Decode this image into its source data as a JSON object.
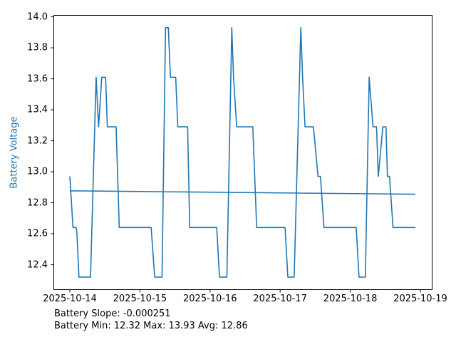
{
  "chart_data": {
    "type": "line",
    "title": "",
    "xlabel": "",
    "ylabel": "Battery Voltage",
    "grid": false,
    "legend": null,
    "line_color": "#1f77b4",
    "ylabel_color": "#1f77b4",
    "tick_color": "#000000",
    "frame_color": "#000000",
    "xlim_days": [
      -0.234,
      5.173
    ],
    "ylim": [
      12.237,
      14.012
    ],
    "x_ticks": [
      {
        "day": 0,
        "label": "2025-10-14"
      },
      {
        "day": 1,
        "label": "2025-10-15"
      },
      {
        "day": 2,
        "label": "2025-10-16"
      },
      {
        "day": 3,
        "label": "2025-10-17"
      },
      {
        "day": 4,
        "label": "2025-10-18"
      },
      {
        "day": 5,
        "label": "2025-10-19"
      }
    ],
    "y_ticks": [
      {
        "value": 12.4,
        "label": "12.4"
      },
      {
        "value": 12.6,
        "label": "12.6"
      },
      {
        "value": 12.8,
        "label": "12.8"
      },
      {
        "value": 13.0,
        "label": "13.0"
      },
      {
        "value": 13.2,
        "label": "13.2"
      },
      {
        "value": 13.4,
        "label": "13.4"
      },
      {
        "value": 13.6,
        "label": "13.6"
      },
      {
        "value": 13.8,
        "label": "13.8"
      },
      {
        "value": 14.0,
        "label": "14.0"
      }
    ],
    "series": [
      {
        "name": "battery_voltage",
        "points": [
          [
            0.0,
            12.97
          ],
          [
            0.045,
            12.64
          ],
          [
            0.09,
            12.64
          ],
          [
            0.1,
            12.61
          ],
          [
            0.13,
            12.32
          ],
          [
            0.295,
            12.32
          ],
          [
            0.375,
            13.61
          ],
          [
            0.41,
            13.29
          ],
          [
            0.455,
            13.61
          ],
          [
            0.51,
            13.61
          ],
          [
            0.535,
            13.29
          ],
          [
            0.66,
            13.29
          ],
          [
            0.705,
            12.64
          ],
          [
            1.16,
            12.64
          ],
          [
            1.21,
            12.32
          ],
          [
            1.315,
            12.32
          ],
          [
            1.365,
            13.93
          ],
          [
            1.405,
            13.93
          ],
          [
            1.435,
            13.61
          ],
          [
            1.51,
            13.61
          ],
          [
            1.54,
            13.29
          ],
          [
            1.68,
            13.29
          ],
          [
            1.71,
            12.64
          ],
          [
            2.095,
            12.64
          ],
          [
            2.135,
            12.32
          ],
          [
            2.24,
            12.32
          ],
          [
            2.31,
            13.93
          ],
          [
            2.335,
            13.61
          ],
          [
            2.38,
            13.29
          ],
          [
            2.61,
            13.29
          ],
          [
            2.665,
            12.64
          ],
          [
            3.07,
            12.64
          ],
          [
            3.11,
            12.32
          ],
          [
            3.2,
            12.32
          ],
          [
            3.295,
            13.93
          ],
          [
            3.32,
            13.61
          ],
          [
            3.355,
            13.29
          ],
          [
            3.475,
            13.29
          ],
          [
            3.54,
            12.97
          ],
          [
            3.575,
            12.97
          ],
          [
            3.625,
            12.64
          ],
          [
            4.085,
            12.64
          ],
          [
            4.125,
            12.32
          ],
          [
            4.215,
            12.32
          ],
          [
            4.27,
            13.61
          ],
          [
            4.325,
            13.29
          ],
          [
            4.375,
            13.29
          ],
          [
            4.4,
            12.97
          ],
          [
            4.465,
            13.29
          ],
          [
            4.51,
            13.29
          ],
          [
            4.53,
            12.97
          ],
          [
            4.56,
            12.97
          ],
          [
            4.61,
            12.64
          ],
          [
            4.93,
            12.64
          ]
        ]
      },
      {
        "name": "trend_line",
        "points": [
          [
            0.0,
            12.877
          ],
          [
            4.93,
            12.855
          ]
        ]
      }
    ],
    "annotations": {
      "slope": "Battery Slope: -0.000251",
      "stats": "Battery Min: 12.32 Max: 13.93 Avg: 12.86"
    },
    "stats": {
      "slope": -0.000251,
      "min": 12.32,
      "max": 13.93,
      "avg": 12.86
    }
  }
}
